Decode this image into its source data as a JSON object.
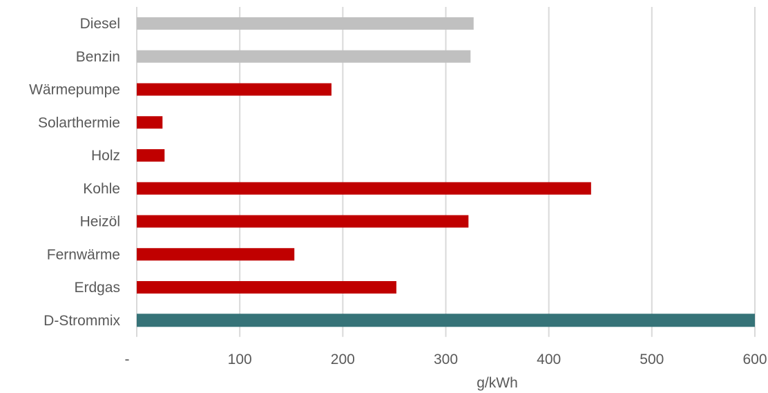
{
  "chart_data": {
    "type": "bar",
    "orientation": "horizontal",
    "categories": [
      "Diesel",
      "Benzin",
      "Wärmepumpe",
      "Solarthermie",
      "Holz",
      "Kohle",
      "Heizöl",
      "Fernwärme",
      "Erdgas",
      "D-Strommix"
    ],
    "values": [
      327,
      324,
      189,
      25,
      27,
      441,
      322,
      153,
      252,
      600
    ],
    "bar_colors": [
      "#c0c0c0",
      "#c0c0c0",
      "#c00000",
      "#c00000",
      "#c00000",
      "#c00000",
      "#c00000",
      "#c00000",
      "#c00000",
      "#367378"
    ],
    "xlim": [
      0,
      600
    ],
    "xticks": [
      0,
      100,
      200,
      300,
      400,
      500,
      600
    ],
    "xtick_labels": [
      "-",
      "100",
      "200",
      "300",
      "400",
      "500",
      "600"
    ],
    "xlabel": "g/kWh",
    "grid": true,
    "grid_color": "#d9d9d9",
    "legend": "none"
  }
}
